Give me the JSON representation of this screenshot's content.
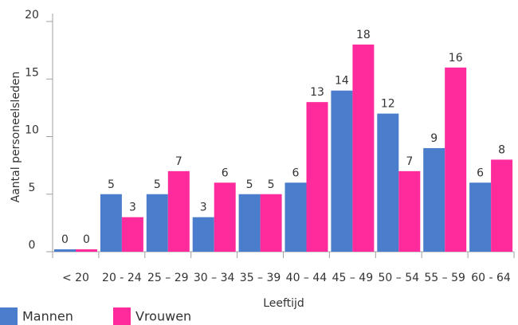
{
  "chart_data": {
    "type": "bar",
    "ylabel": "Aantal personeelsleden",
    "xlabel": "Leeftijd",
    "categories": [
      "< 20",
      "20 - 24",
      "25 – 29",
      "30 – 34",
      "35 – 39",
      "40 – 44",
      "45 – 49",
      "50 – 54",
      "55 – 59",
      "60 - 64"
    ],
    "series": [
      {
        "name": "Mannen",
        "color": "#4a7dcc",
        "values": [
          0,
          5,
          5,
          3,
          5,
          6,
          14,
          12,
          9,
          6
        ]
      },
      {
        "name": "Vrouwen",
        "color": "#ff2b9c",
        "values": [
          0,
          3,
          7,
          6,
          5,
          13,
          18,
          7,
          16,
          8
        ]
      }
    ],
    "ylim": [
      0,
      20
    ],
    "yticks": [
      0,
      5,
      10,
      15,
      20
    ],
    "legend": "bottom-left"
  }
}
